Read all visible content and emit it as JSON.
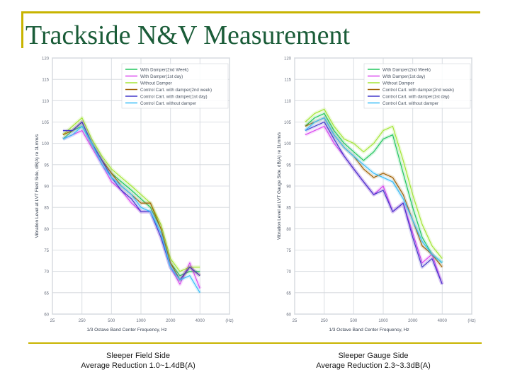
{
  "slide": {
    "title": "Trackside N&V Measurement"
  },
  "colors": {
    "accent_rule": "#c8b400",
    "title": "#1a5c38",
    "with_damper_2nd_week": "#22c55e",
    "with_damper_1st_day": "#d946ef",
    "without_damper": "#a3e635",
    "control_with_damper_2nd_week": "#a16207",
    "control_with_damper_1st_day": "#4338ca",
    "control_without_damper": "#38bdf8"
  },
  "captions": {
    "left": {
      "line1": "Sleeper Field Side",
      "line2": "Average Reduction 1.0~1.4dB(A)"
    },
    "right": {
      "line1": "Sleeper Gauge Side",
      "line2": "Average Reduction 2.3~3.3dB(A)"
    }
  },
  "chart_data": [
    {
      "type": "line",
      "title": "",
      "xlabel": "1/3 Octave Band Center Frequency, Hz",
      "ylabel": "Vibration Level at LVT Field Side, dB(A) re 1Lmm/s",
      "x_ticks": [
        "25",
        "250",
        "500",
        "1000",
        "2000",
        "4000",
        "(Hz)"
      ],
      "y_ticks": [
        120,
        115,
        110,
        105,
        100,
        95,
        90,
        85,
        80,
        75,
        70,
        65,
        60
      ],
      "ylim": [
        60,
        120
      ],
      "grid": true,
      "legend_position": "top-right",
      "x": [
        160,
        200,
        250,
        315,
        400,
        500,
        630,
        800,
        1000,
        1250,
        1600,
        2000,
        2500,
        3150,
        4000
      ],
      "series": [
        {
          "name": "With Damper(2nd Week)",
          "values": [
            101,
            103,
            104,
            100,
            96,
            93,
            91,
            89,
            87,
            85,
            80,
            72,
            69,
            70,
            70
          ]
        },
        {
          "name": "With Damper(1st day)",
          "values": [
            101,
            102,
            103,
            99,
            95,
            91,
            89,
            86,
            84,
            84,
            78,
            71,
            67,
            72,
            66
          ]
        },
        {
          "name": "Without Damper",
          "values": [
            102,
            104,
            106,
            101,
            97,
            94,
            92,
            90,
            88,
            86,
            81,
            73,
            70,
            71,
            71
          ]
        },
        {
          "name": "Control Cart. with damper(2nd week)",
          "values": [
            102,
            103,
            105,
            100,
            96,
            93,
            90,
            88,
            86,
            86,
            80,
            72,
            68,
            71,
            69
          ]
        },
        {
          "name": "Control Cart. with damper(1st day)",
          "values": [
            103,
            103,
            105,
            100,
            96,
            92,
            89,
            87,
            84,
            84,
            78,
            71,
            68,
            71,
            69
          ]
        },
        {
          "name": "Control Cart. without damper",
          "values": [
            101,
            102,
            104,
            100,
            95,
            92,
            90,
            88,
            85,
            84,
            79,
            71,
            68,
            69,
            65
          ]
        }
      ]
    },
    {
      "type": "line",
      "title": "",
      "xlabel": "1/3 Octave Band Center Frequency, Hz",
      "ylabel": "Vibration Level at LVT Gauge Side, dB(A) re 1Lmm/s",
      "x_ticks": [
        "25",
        "250",
        "500",
        "1000",
        "2000",
        "4000",
        "(Hz)"
      ],
      "y_ticks": [
        120,
        115,
        110,
        105,
        100,
        95,
        90,
        85,
        80,
        75,
        70,
        65,
        60
      ],
      "ylim": [
        60,
        120
      ],
      "grid": true,
      "legend_position": "top-right",
      "x": [
        160,
        200,
        250,
        315,
        400,
        500,
        630,
        800,
        1000,
        1250,
        1600,
        2000,
        2500,
        3150,
        4000
      ],
      "series": [
        {
          "name": "With Damper(2nd Week)",
          "values": [
            104,
            106,
            107,
            103,
            100,
            98,
            96,
            98,
            101,
            102,
            93,
            85,
            78,
            74,
            72
          ]
        },
        {
          "name": "With Damper(1st day)",
          "values": [
            102,
            103,
            104,
            100,
            97,
            94,
            91,
            88,
            90,
            84,
            86,
            79,
            72,
            74,
            67
          ]
        },
        {
          "name": "Without Damper",
          "values": [
            105,
            107,
            108,
            104,
            101,
            100,
            98,
            100,
            103,
            104,
            96,
            88,
            81,
            76,
            73
          ]
        },
        {
          "name": "Control Cart. with damper(2nd week)",
          "values": [
            104,
            105,
            106,
            102,
            99,
            97,
            94,
            92,
            93,
            92,
            88,
            82,
            76,
            74,
            71
          ]
        },
        {
          "name": "Control Cart. with damper(1st day)",
          "values": [
            103,
            104,
            105,
            101,
            97,
            94,
            91,
            88,
            89,
            84,
            86,
            78,
            71,
            73,
            67
          ]
        },
        {
          "name": "Control Cart. without damper",
          "values": [
            103,
            105,
            106,
            102,
            99,
            97,
            95,
            93,
            92,
            91,
            87,
            82,
            77,
            74,
            72
          ]
        }
      ]
    }
  ]
}
